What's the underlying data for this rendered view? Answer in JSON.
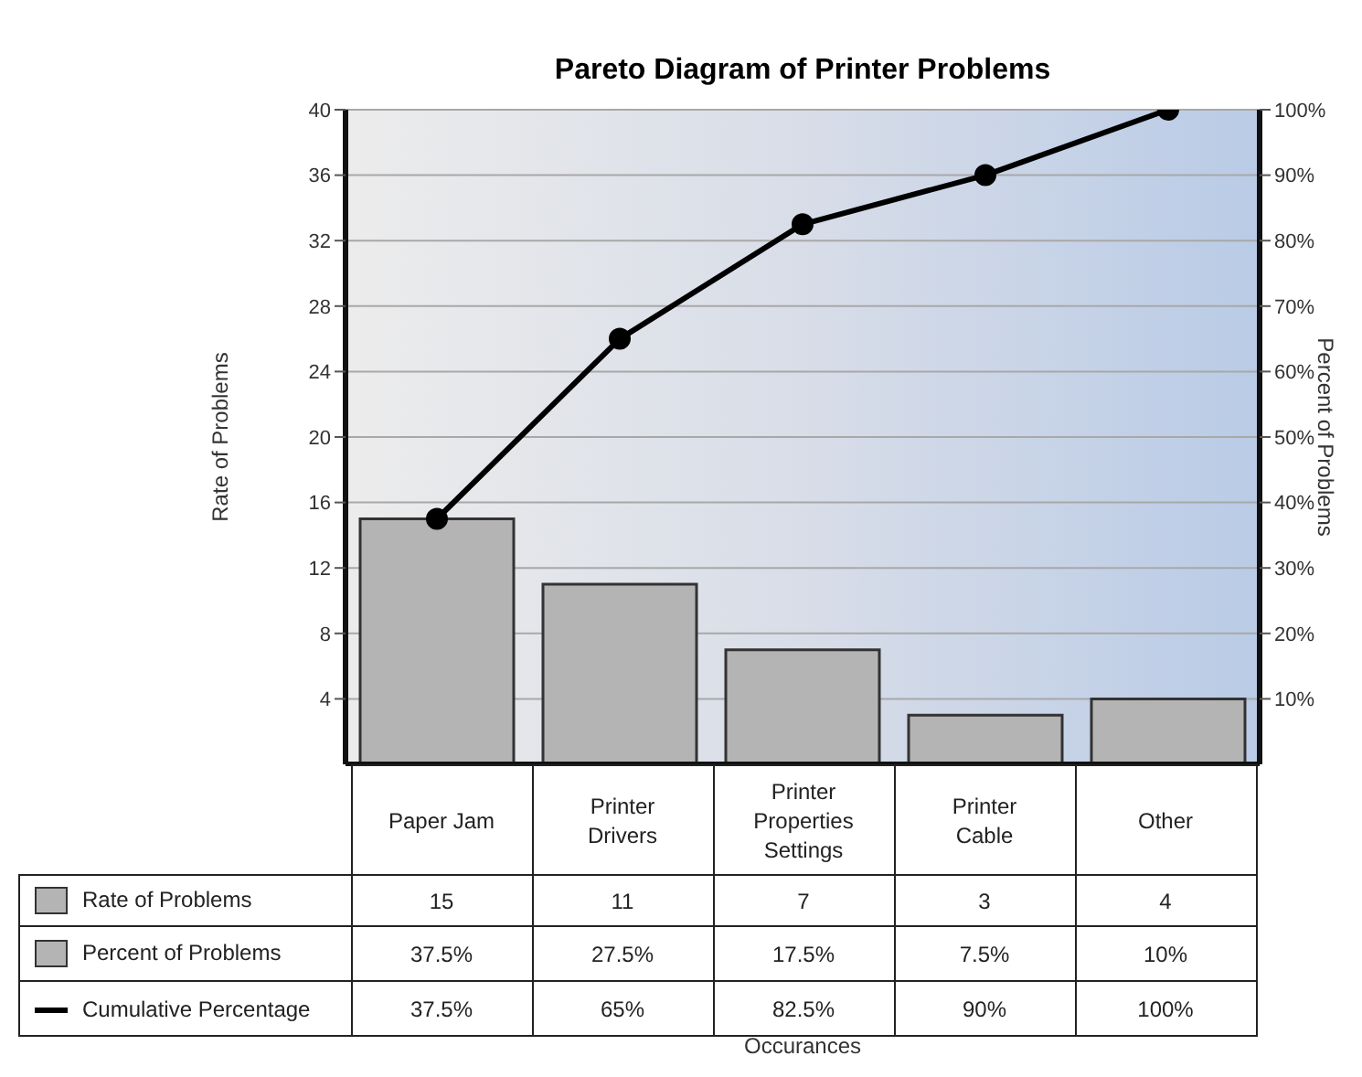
{
  "chart_data": {
    "type": "bar",
    "title": "Pareto Diagram of Printer Problems",
    "annotations": [
      "Percent of Problems",
      "37.5%",
      "27.5%",
      "17.5%",
      "7.5%",
      "10%",
      "Occurances"
    ],
    "ylabel": "Rate of Problems",
    "y2label": "Percent of Problems",
    "categories": [
      "Paper Jam",
      "Printer Drivers",
      "Printer Properties Settings",
      "Printer Cable",
      "Other"
    ],
    "series": [
      {
        "name": "Rate of Problems",
        "color": "#b4b4b4",
        "values": [
          15,
          11,
          7,
          3,
          4
        ]
      },
      {
        "name": "Cumulative Percentage",
        "type": "line",
        "axis": "y2",
        "color": "#000000",
        "values": [
          37.5,
          65,
          82.5,
          90,
          100
        ],
        "value_labels": [
          "37.5%",
          "65%",
          "82.5%",
          "90%",
          "100%"
        ]
      }
    ],
    "ylim": [
      0,
      40
    ],
    "yticks": [
      4,
      8,
      12,
      16,
      20,
      24,
      28,
      32,
      36,
      40
    ],
    "y2lim": [
      0,
      100
    ],
    "y2ticks": [
      {
        "value": 10,
        "label": "10%"
      },
      {
        "value": 20,
        "label": "20%"
      },
      {
        "value": 30,
        "label": "30%"
      },
      {
        "value": 40,
        "label": "40%"
      },
      {
        "value": 50,
        "label": "50%"
      },
      {
        "value": 60,
        "label": "60%"
      },
      {
        "value": 70,
        "label": "70%"
      },
      {
        "value": 80,
        "label": "80%"
      },
      {
        "value": 90,
        "label": "90%"
      },
      {
        "value": 100,
        "label": "100%"
      }
    ],
    "grid": "y",
    "legend": "bottom",
    "data_labels": true,
    "marker": "circle",
    "line_style": "solid"
  }
}
